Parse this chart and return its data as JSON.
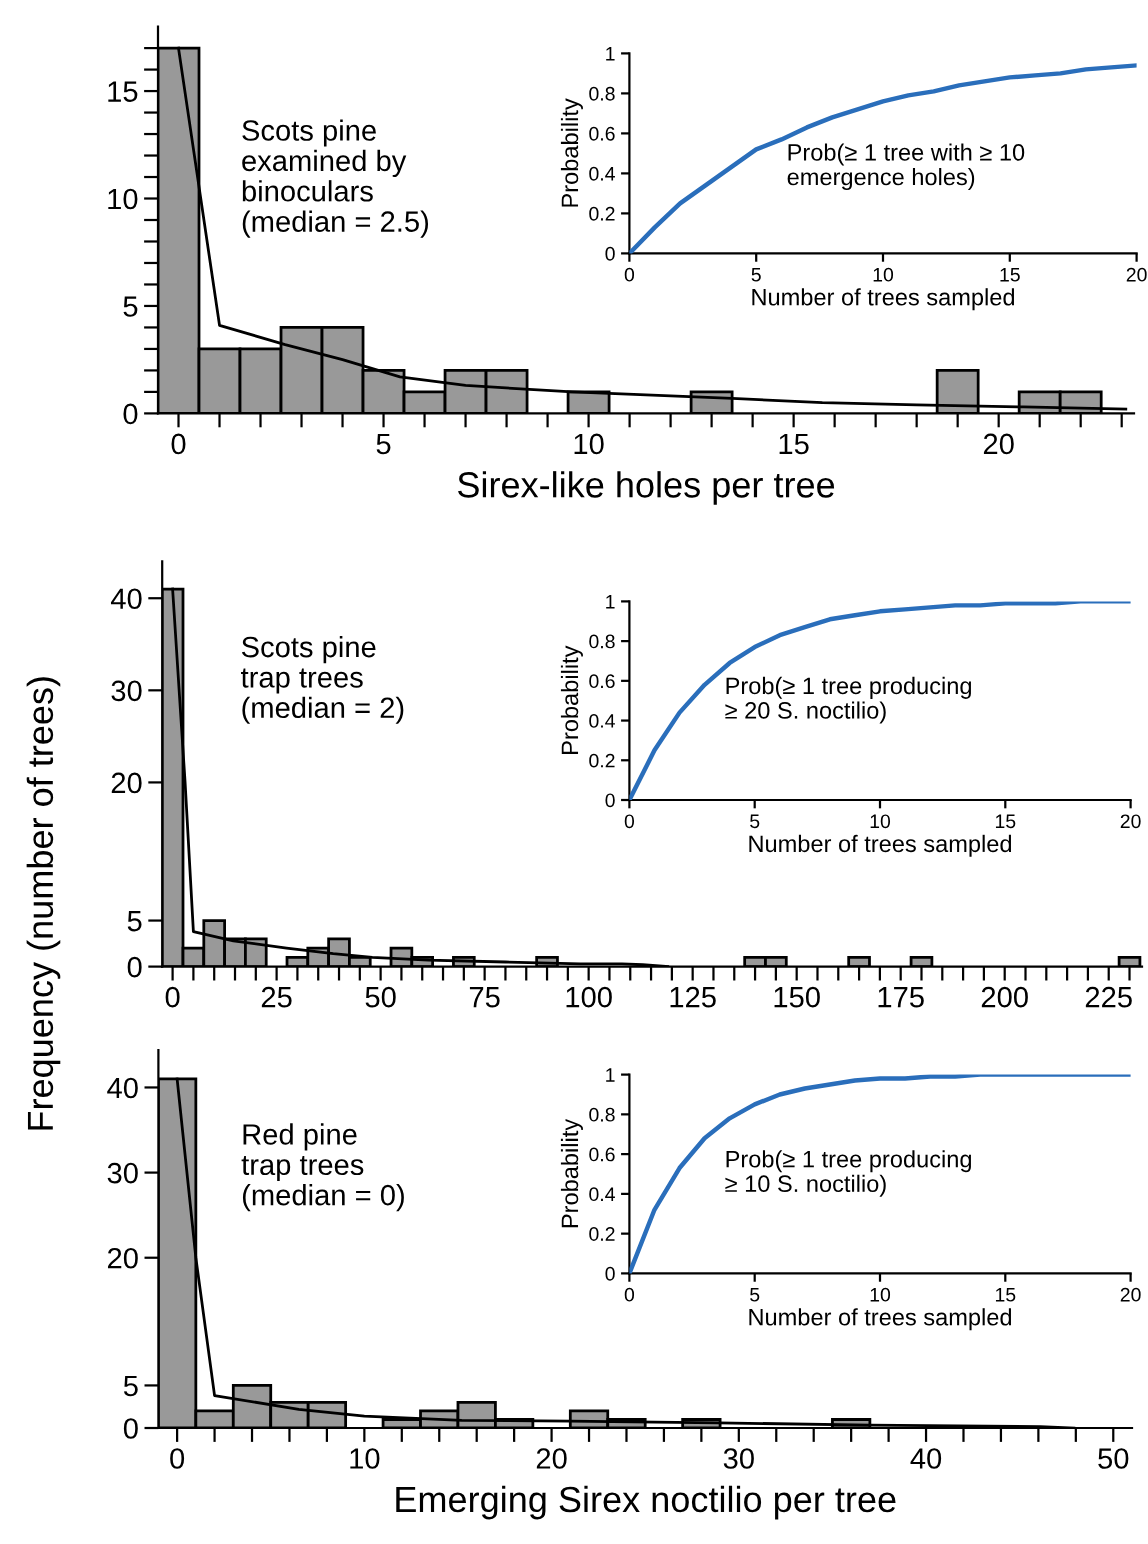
{
  "chart_data": [
    {
      "type": "histogram",
      "xlabel": "Sirex-like holes per tree",
      "annotations": [
        "Scots pine\nexamined by\nbinoculars\n(median = 2.5)"
      ],
      "series": [
        {
          "type": "histogram",
          "color": "#999999",
          "bins": [
            -0.5,
            0.5,
            1.5,
            2.5,
            3.5,
            4.5,
            5.5,
            6.5,
            7.5,
            8.5,
            9.5,
            10.5,
            11.5,
            12.5,
            13.5,
            14.5,
            15.5,
            16.5,
            17.5,
            18.5,
            19.5,
            20.5,
            21.5,
            22.5
          ],
          "values": [
            17,
            3,
            3,
            4,
            4,
            2,
            1,
            2,
            2,
            0,
            1,
            0,
            0,
            1,
            0,
            0,
            0,
            0,
            0,
            2,
            0,
            1,
            1
          ]
        },
        {
          "type": "line",
          "color": "#000000",
          "x": [
            0,
            1,
            2.6,
            4,
            5.4,
            7,
            9.6,
            13.5,
            15.7,
            18,
            20.6,
            23.1
          ],
          "values": [
            17,
            4.1,
            3.2,
            2.5,
            1.7,
            1.3,
            1.0,
            0.7,
            0.5,
            0.4,
            0.3,
            0.2
          ]
        }
      ],
      "xlim": [
        -0.5,
        23.3
      ],
      "ylim": [
        0,
        18
      ],
      "xticks": [
        0,
        {
          "value": 1,
          "label": null
        },
        {
          "value": 2,
          "label": null
        },
        {
          "value": 3,
          "label": null
        },
        {
          "value": 4,
          "label": null
        },
        5,
        {
          "value": 6,
          "label": null
        },
        {
          "value": 7,
          "label": null
        },
        {
          "value": 8,
          "label": null
        },
        {
          "value": 9,
          "label": null
        },
        10,
        {
          "value": 11,
          "label": null
        },
        {
          "value": 12,
          "label": null
        },
        {
          "value": 13,
          "label": null
        },
        {
          "value": 14,
          "label": null
        },
        15,
        {
          "value": 16,
          "label": null
        },
        {
          "value": 17,
          "label": null
        },
        {
          "value": 18,
          "label": null
        },
        {
          "value": 19,
          "label": null
        },
        20,
        {
          "value": 21,
          "label": null
        },
        {
          "value": 22,
          "label": null
        },
        {
          "value": 23,
          "label": null
        }
      ],
      "yticks": [
        0,
        {
          "value": 1,
          "label": null
        },
        {
          "value": 2,
          "label": null
        },
        {
          "value": 3,
          "label": null
        },
        {
          "value": 4,
          "label": null
        },
        5,
        {
          "value": 6,
          "label": null
        },
        {
          "value": 7,
          "label": null
        },
        {
          "value": 8,
          "label": null
        },
        {
          "value": 9,
          "label": null
        },
        10,
        {
          "value": 11,
          "label": null
        },
        {
          "value": 12,
          "label": null
        },
        {
          "value": 13,
          "label": null
        },
        {
          "value": 14,
          "label": null
        },
        15,
        {
          "value": 16,
          "label": null
        },
        {
          "value": 17,
          "label": null
        }
      ]
    },
    {
      "type": "line",
      "xlabel": "Number of trees sampled",
      "ylabel": "Probability",
      "annotations": [
        "Prob(≥ 1 tree with ≥ 10\nemergence holes)"
      ],
      "x": [
        0,
        1,
        2,
        3,
        4,
        5,
        6,
        7,
        8,
        9,
        10,
        11,
        12,
        13,
        14,
        15,
        16,
        17,
        18,
        19,
        20
      ],
      "series": [
        {
          "type": "line",
          "color": "#2a6ebb",
          "values": [
            0,
            0.13,
            0.25,
            0.34,
            0.43,
            0.52,
            0.57,
            0.63,
            0.68,
            0.72,
            0.76,
            0.79,
            0.81,
            0.84,
            0.86,
            0.88,
            0.89,
            0.9,
            0.92,
            0.93,
            0.94
          ]
        }
      ],
      "xlim": [
        0,
        20
      ],
      "ylim": [
        0,
        1
      ],
      "xticks": [
        0,
        5,
        10,
        15,
        20
      ],
      "yticks": [
        0,
        0.2,
        0.4,
        0.6,
        0.8,
        1
      ]
    },
    {
      "type": "histogram",
      "ylabel": "Frequency (number of trees)",
      "annotations": [
        "Scots pine\ntrap trees\n(median = 2)"
      ],
      "series": [
        {
          "type": "histogram",
          "color": "#999999",
          "bins": [
            -2.5,
            2.5,
            7.5,
            12.5,
            17.5,
            22.5,
            27.5,
            32.5,
            37.5,
            42.5,
            47.5,
            52.5,
            57.5,
            62.5,
            67.5,
            72.5,
            77.5,
            82.5,
            87.5,
            92.5,
            97.5,
            102.5,
            107.5,
            112.5,
            117.5,
            122.5,
            127.5,
            132.5,
            137.5,
            142.5,
            147.5,
            152.5,
            157.5,
            162.5,
            167.5,
            172.5,
            177.5,
            182.5,
            187.5,
            192.5,
            197.5,
            202.5,
            207.5,
            212.5,
            217.5,
            222.5,
            227.5,
            232.5
          ],
          "values": [
            41,
            2,
            5,
            3,
            3,
            0,
            1,
            2,
            3,
            1,
            0,
            2,
            1,
            0,
            1,
            0,
            0,
            0,
            1,
            0,
            0,
            0,
            0,
            0,
            0,
            0,
            0,
            0,
            1,
            1,
            0,
            0,
            0,
            1,
            0,
            0,
            1,
            0,
            0,
            0,
            0,
            0,
            0,
            0,
            0,
            0,
            1
          ]
        },
        {
          "type": "line",
          "color": "#000000",
          "x": [
            0,
            3,
            5,
            14.6,
            27.4,
            38.6,
            48,
            61.5,
            80,
            98,
            108,
            113,
            119
          ],
          "values": [
            41,
            20,
            3.8,
            2.8,
            2.0,
            1.4,
            1.0,
            0.7,
            0.5,
            0.3,
            0.3,
            0.2,
            0
          ]
        }
      ],
      "xlim": [
        -2.5,
        233
      ],
      "ylim": [
        0,
        44
      ],
      "xticks": [
        0,
        {
          "value": 5,
          "label": null
        },
        {
          "value": 10,
          "label": null
        },
        {
          "value": 15,
          "label": null
        },
        {
          "value": 20,
          "label": null
        },
        25,
        {
          "value": 30,
          "label": null
        },
        {
          "value": 35,
          "label": null
        },
        {
          "value": 40,
          "label": null
        },
        {
          "value": 45,
          "label": null
        },
        50,
        {
          "value": 55,
          "label": null
        },
        {
          "value": 60,
          "label": null
        },
        {
          "value": 65,
          "label": null
        },
        {
          "value": 70,
          "label": null
        },
        75,
        {
          "value": 80,
          "label": null
        },
        {
          "value": 85,
          "label": null
        },
        {
          "value": 90,
          "label": null
        },
        {
          "value": 95,
          "label": null
        },
        100,
        {
          "value": 105,
          "label": null
        },
        {
          "value": 110,
          "label": null
        },
        {
          "value": 115,
          "label": null
        },
        {
          "value": 120,
          "label": null
        },
        125,
        {
          "value": 130,
          "label": null
        },
        {
          "value": 135,
          "label": null
        },
        {
          "value": 140,
          "label": null
        },
        {
          "value": 145,
          "label": null
        },
        150,
        {
          "value": 155,
          "label": null
        },
        {
          "value": 160,
          "label": null
        },
        {
          "value": 165,
          "label": null
        },
        {
          "value": 170,
          "label": null
        },
        175,
        {
          "value": 180,
          "label": null
        },
        {
          "value": 185,
          "label": null
        },
        {
          "value": 190,
          "label": null
        },
        {
          "value": 195,
          "label": null
        },
        200,
        {
          "value": 205,
          "label": null
        },
        {
          "value": 210,
          "label": null
        },
        {
          "value": 215,
          "label": null
        },
        {
          "value": 220,
          "label": null
        },
        225,
        {
          "value": 230,
          "label": null
        }
      ],
      "yticks": [
        0,
        5,
        20,
        30,
        40
      ]
    },
    {
      "type": "line",
      "xlabel": "Number of trees sampled",
      "ylabel": "Probability",
      "annotations": [
        "Prob(≥ 1 tree producing\n≥ 20 S. noctilio)"
      ],
      "x": [
        0,
        1,
        2,
        3,
        4,
        5,
        6,
        7,
        8,
        9,
        10,
        11,
        12,
        13,
        14,
        15,
        16,
        17,
        18,
        19,
        20
      ],
      "series": [
        {
          "type": "line",
          "color": "#2a6ebb",
          "values": [
            0,
            0.25,
            0.44,
            0.58,
            0.69,
            0.77,
            0.83,
            0.87,
            0.91,
            0.93,
            0.95,
            0.96,
            0.97,
            0.98,
            0.98,
            0.99,
            0.99,
            0.99,
            1,
            1,
            1
          ]
        }
      ],
      "xlim": [
        0,
        20
      ],
      "ylim": [
        0,
        1
      ],
      "xticks": [
        0,
        5,
        10,
        15,
        20
      ],
      "yticks": [
        0,
        0.2,
        0.4,
        0.6,
        0.8,
        1
      ]
    },
    {
      "type": "histogram",
      "xlabel": "Emerging Sirex noctilio per tree",
      "annotations": [
        "Red pine\ntrap trees\n(median = 0)"
      ],
      "series": [
        {
          "type": "histogram",
          "color": "#999999",
          "bins": [
            -1,
            1,
            3,
            5,
            7,
            9,
            11,
            13,
            15,
            17,
            19,
            21,
            23,
            25,
            27,
            29,
            31,
            33,
            35,
            37
          ],
          "values": [
            41,
            2,
            5,
            3,
            3,
            0,
            1,
            2,
            3,
            1,
            0,
            2,
            1,
            0,
            1,
            0,
            0,
            0,
            1
          ]
        },
        {
          "type": "line",
          "color": "#000000",
          "x": [
            0,
            1,
            2,
            6.5,
            10,
            15.2,
            21,
            28.9,
            37,
            46.1,
            47.9
          ],
          "values": [
            41,
            20,
            3.8,
            2.2,
            1.4,
            0.9,
            0.8,
            0.6,
            0.35,
            0.17,
            0
          ]
        }
      ],
      "xlim": [
        -1,
        51
      ],
      "ylim": [
        0,
        44.4
      ],
      "xticks": [
        0,
        {
          "value": 2,
          "label": null
        },
        {
          "value": 4,
          "label": null
        },
        {
          "value": 6,
          "label": null
        },
        {
          "value": 8,
          "label": null
        },
        10,
        {
          "value": 12,
          "label": null
        },
        {
          "value": 14,
          "label": null
        },
        {
          "value": 16,
          "label": null
        },
        {
          "value": 18,
          "label": null
        },
        20,
        {
          "value": 22,
          "label": null
        },
        {
          "value": 24,
          "label": null
        },
        {
          "value": 26,
          "label": null
        },
        {
          "value": 28,
          "label": null
        },
        30,
        {
          "value": 32,
          "label": null
        },
        {
          "value": 34,
          "label": null
        },
        {
          "value": 36,
          "label": null
        },
        {
          "value": 38,
          "label": null
        },
        40,
        {
          "value": 42,
          "label": null
        },
        {
          "value": 44,
          "label": null
        },
        {
          "value": 46,
          "label": null
        },
        {
          "value": 48,
          "label": null
        },
        50
      ],
      "yticks": [
        0,
        5,
        20,
        30,
        40
      ]
    },
    {
      "type": "line",
      "xlabel": "Number of trees sampled",
      "ylabel": "Probability",
      "annotations": [
        "Prob(≥ 1 tree producing\n≥ 10 S. noctilio)"
      ],
      "x": [
        0,
        1,
        2,
        3,
        4,
        5,
        6,
        7,
        8,
        9,
        10,
        11,
        12,
        13,
        14,
        15,
        16,
        17,
        18,
        19,
        20
      ],
      "series": [
        {
          "type": "line",
          "color": "#2a6ebb",
          "values": [
            0,
            0.32,
            0.53,
            0.68,
            0.78,
            0.85,
            0.9,
            0.93,
            0.95,
            0.97,
            0.98,
            0.98,
            0.99,
            0.99,
            1,
            1,
            1,
            1,
            1,
            1,
            1
          ]
        }
      ],
      "xlim": [
        0,
        20
      ],
      "ylim": [
        0,
        1
      ],
      "xticks": [
        0,
        5,
        10,
        15,
        20
      ],
      "yticks": [
        0,
        0.2,
        0.4,
        0.6,
        0.8,
        1
      ]
    }
  ]
}
